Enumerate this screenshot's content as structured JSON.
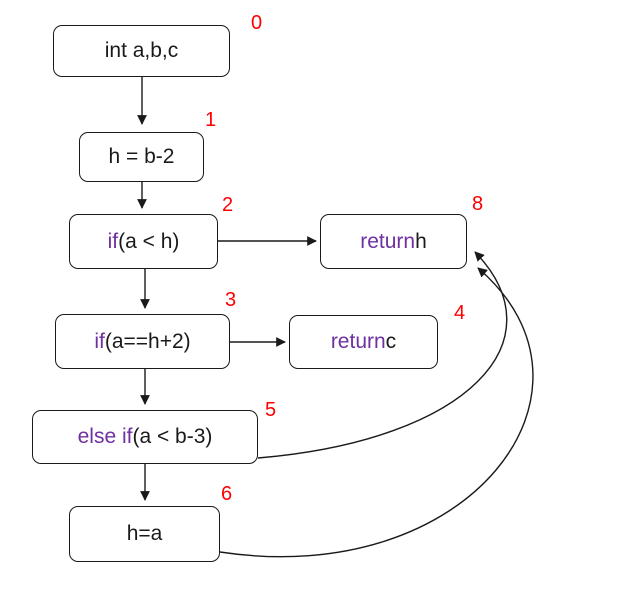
{
  "nodes": [
    {
      "id": "0",
      "number": "0",
      "keyword": "",
      "text": "int a,b,c"
    },
    {
      "id": "1",
      "number": "1",
      "keyword": "",
      "text": "h = b-2"
    },
    {
      "id": "2",
      "number": "2",
      "keyword": "if",
      "text": " (a < h)"
    },
    {
      "id": "3",
      "number": "3",
      "keyword": "if",
      "text": " (a==h+2)"
    },
    {
      "id": "4",
      "number": "4",
      "keyword": "return",
      "text": " c"
    },
    {
      "id": "5",
      "number": "5",
      "keyword": "else if",
      "text": " (a < b-3)"
    },
    {
      "id": "6",
      "number": "6",
      "keyword": "",
      "text": "h=a"
    },
    {
      "id": "8",
      "number": "8",
      "keyword": "return",
      "text": " h"
    }
  ],
  "edges": [
    {
      "from": "0",
      "to": "1"
    },
    {
      "from": "1",
      "to": "2"
    },
    {
      "from": "2",
      "to": "8"
    },
    {
      "from": "2",
      "to": "3"
    },
    {
      "from": "3",
      "to": "4"
    },
    {
      "from": "3",
      "to": "5"
    },
    {
      "from": "5",
      "to": "6"
    },
    {
      "from": "5",
      "to": "8"
    },
    {
      "from": "6",
      "to": "8"
    }
  ],
  "colors": {
    "keyword": "#7030a0",
    "node_number": "#ff0000",
    "stroke": "#1a1a1a"
  }
}
